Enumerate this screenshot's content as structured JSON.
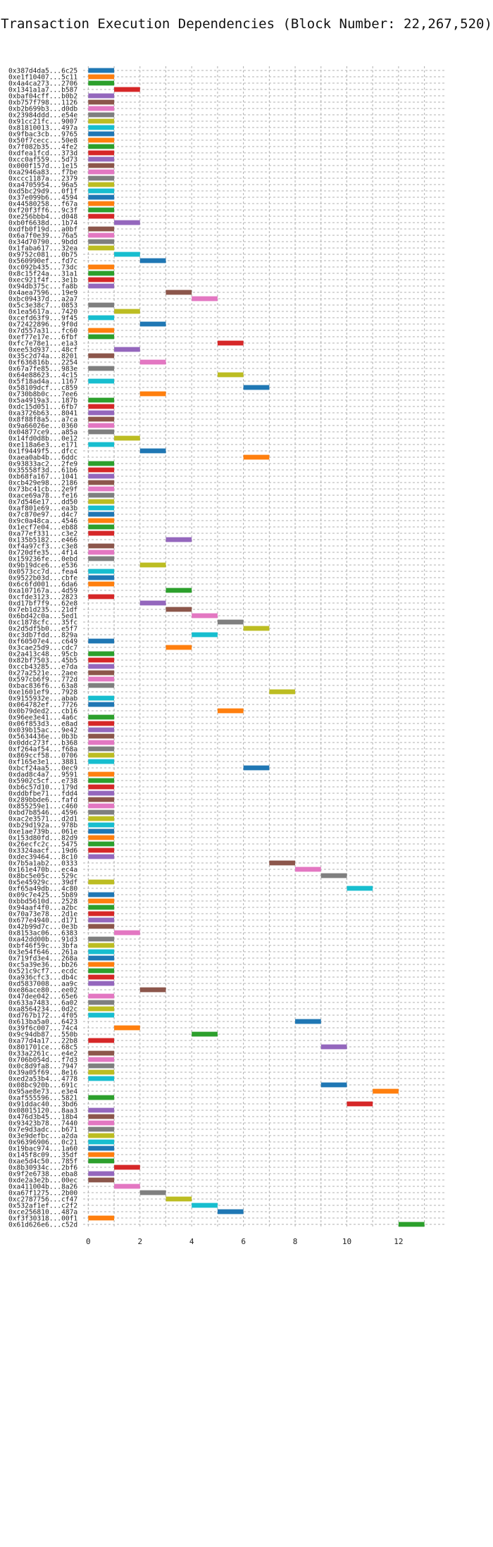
{
  "chart_data": {
    "type": "bar",
    "orientation": "horizontal-gantt",
    "title": "Transaction Execution Dependencies (Block Number: 22,267,520)",
    "xlabel": "",
    "ylabel": "",
    "xlim": [
      -0.2,
      13.8
    ],
    "xticks": [
      0,
      2,
      4,
      6,
      8,
      10,
      12
    ],
    "grid": true,
    "palette": [
      "#1f77b4",
      "#ff7f0e",
      "#2ca02c",
      "#d62728",
      "#9467bd",
      "#8c564b",
      "#e377c2",
      "#7f7f7f",
      "#bcbd22",
      "#17becf"
    ],
    "bar_width": 1,
    "transactions": [
      {
        "label": "0x387d4da5...6c25",
        "start": 0
      },
      {
        "label": "0xe1f10407...5c11",
        "start": 0
      },
      {
        "label": "0x4a4ca273...2706",
        "start": 0
      },
      {
        "label": "0x1341a1a7...b587",
        "start": 1
      },
      {
        "label": "0xbaf04cff...b0b2",
        "start": 0
      },
      {
        "label": "0xb757f798...1126",
        "start": 0
      },
      {
        "label": "0xb2b699b3...d0db",
        "start": 0
      },
      {
        "label": "0x23984ddd...e54e",
        "start": 0
      },
      {
        "label": "0x91cc21fc...9007",
        "start": 0
      },
      {
        "label": "0x81810013...497a",
        "start": 0
      },
      {
        "label": "0x9fbac3cb...9765",
        "start": 0
      },
      {
        "label": "0x50f7cecc...50e8",
        "start": 0
      },
      {
        "label": "0x7f082b35...4fe2",
        "start": 0
      },
      {
        "label": "0xdfea1fcd...373d",
        "start": 0
      },
      {
        "label": "0xcc0af559...5d73",
        "start": 0
      },
      {
        "label": "0x000f157d...1e15",
        "start": 0
      },
      {
        "label": "0xa2946a83...f7be",
        "start": 0
      },
      {
        "label": "0xccc1187a...2379",
        "start": 0
      },
      {
        "label": "0xa4705954...96a5",
        "start": 0
      },
      {
        "label": "0xd5bc29d9...0f1f",
        "start": 0
      },
      {
        "label": "0x37e099b6...4594",
        "start": 0
      },
      {
        "label": "0x44580258...f67a",
        "start": 0
      },
      {
        "label": "0xf20f3ff6...9c3f",
        "start": 0
      },
      {
        "label": "0xe256bbb4...d048",
        "start": 0
      },
      {
        "label": "0xb0f6638d...1b74",
        "start": 1
      },
      {
        "label": "0xdfb0f19d...a0bf",
        "start": 0
      },
      {
        "label": "0x6a7f0e39...76a5",
        "start": 0
      },
      {
        "label": "0x34d70790...9bdd",
        "start": 0
      },
      {
        "label": "0x1faba617...32ea",
        "start": 0
      },
      {
        "label": "0x9752c081...0b75",
        "start": 1
      },
      {
        "label": "0x560990ef...fd7c",
        "start": 2
      },
      {
        "label": "0xc092b435...73dc",
        "start": 0
      },
      {
        "label": "0x8c15f24a...31a1",
        "start": 0
      },
      {
        "label": "0xec921f4f...3e1b",
        "start": 0
      },
      {
        "label": "0x94db375c...fa8b",
        "start": 0
      },
      {
        "label": "0x4aea7596...19e9",
        "start": 3
      },
      {
        "label": "0xbc09437d...a2a7",
        "start": 4
      },
      {
        "label": "0x5c3e38c7...0853",
        "start": 0
      },
      {
        "label": "0x1ea5617a...7420",
        "start": 1
      },
      {
        "label": "0xcefd63f9...9f45",
        "start": 0
      },
      {
        "label": "0x72422896...9f0d",
        "start": 2
      },
      {
        "label": "0x7d557a31...fc60",
        "start": 0
      },
      {
        "label": "0xef77e17e...6fbf",
        "start": 0
      },
      {
        "label": "0xfc7e78e1...e1a3",
        "start": 5
      },
      {
        "label": "0xee53d937...48cf",
        "start": 1
      },
      {
        "label": "0x35c2d74a...8201",
        "start": 0
      },
      {
        "label": "0xf636816b...2254",
        "start": 2
      },
      {
        "label": "0x67a7fe85...983e",
        "start": 0
      },
      {
        "label": "0x64e88623...4c15",
        "start": 5
      },
      {
        "label": "0x5f18ad4a...1167",
        "start": 0
      },
      {
        "label": "0x58109dcf...c859",
        "start": 6
      },
      {
        "label": "0x730b8b0c...7ee6",
        "start": 2
      },
      {
        "label": "0x5a4919a3...187b",
        "start": 0
      },
      {
        "label": "0xdc15d051...6fb7",
        "start": 0
      },
      {
        "label": "0xa3726b63...8041",
        "start": 0
      },
      {
        "label": "0x8f88f8a5...a7ca",
        "start": 0
      },
      {
        "label": "0x9a66026e...0360",
        "start": 0
      },
      {
        "label": "0x04877ce9...a85a",
        "start": 0
      },
      {
        "label": "0x14fd0d8b...0e12",
        "start": 1
      },
      {
        "label": "0xe118a6e3...e171",
        "start": 0
      },
      {
        "label": "0x1f9449f5...dfcc",
        "start": 2
      },
      {
        "label": "0xaea0ab4b...6ddc",
        "start": 6
      },
      {
        "label": "0x93833ac2...2fe9",
        "start": 0
      },
      {
        "label": "0x35558f3d...61b6",
        "start": 0
      },
      {
        "label": "0xb68fa167...1041",
        "start": 0
      },
      {
        "label": "0xcb429e98...2186",
        "start": 0
      },
      {
        "label": "0x73bc41cb...2e9f",
        "start": 0
      },
      {
        "label": "0xace69a78...fe16",
        "start": 0
      },
      {
        "label": "0x7d546e17...dd50",
        "start": 0
      },
      {
        "label": "0xaf801e69...ea3b",
        "start": 0
      },
      {
        "label": "0x7c870e97...d4c7",
        "start": 0
      },
      {
        "label": "0x9c0a48ca...4546",
        "start": 0
      },
      {
        "label": "0x1ecf7e04...eb88",
        "start": 0
      },
      {
        "label": "0xa77ef331...c3e2",
        "start": 0
      },
      {
        "label": "0x135b5182...e466",
        "start": 3
      },
      {
        "label": "0xf4a97cf3...c3e8",
        "start": 0
      },
      {
        "label": "0x720dfe35...4f14",
        "start": 0
      },
      {
        "label": "0x159236fe...0ebd",
        "start": 0
      },
      {
        "label": "0x9b19dce6...e536",
        "start": 2
      },
      {
        "label": "0x0573cc7d...fea4",
        "start": 0
      },
      {
        "label": "0x9522b03d...cbfe",
        "start": 0
      },
      {
        "label": "0x6c6fd001...6da6",
        "start": 0
      },
      {
        "label": "0xa107167a...4d59",
        "start": 3
      },
      {
        "label": "0xcfde3123...2823",
        "start": 0
      },
      {
        "label": "0xd17bf7f9...62e8",
        "start": 2
      },
      {
        "label": "0x7eb1d235...21df",
        "start": 3
      },
      {
        "label": "0x6bd42c0a...5ed1",
        "start": 4
      },
      {
        "label": "0xc1878cfc...35fc",
        "start": 5
      },
      {
        "label": "0x2d5df5b0...e5f7",
        "start": 6
      },
      {
        "label": "0xc3db7fdd...829a",
        "start": 4
      },
      {
        "label": "0xf60507e4...c649",
        "start": 0
      },
      {
        "label": "0x3cae25d9...cdc7",
        "start": 3
      },
      {
        "label": "0x2a413c48...95cb",
        "start": 0
      },
      {
        "label": "0x82bf7503...45b5",
        "start": 0
      },
      {
        "label": "0xccb43285...e7da",
        "start": 0
      },
      {
        "label": "0x27a2521e...2aee",
        "start": 0
      },
      {
        "label": "0x597cb6f9...772d",
        "start": 0
      },
      {
        "label": "0xbac836f6...63a8",
        "start": 0
      },
      {
        "label": "0xe1601ef9...7928",
        "start": 7
      },
      {
        "label": "0x9155932e...abab",
        "start": 0
      },
      {
        "label": "0x064782ef...7726",
        "start": 0
      },
      {
        "label": "0x0b79ded2...cb16",
        "start": 5
      },
      {
        "label": "0x96ee3e41...4a6c",
        "start": 0
      },
      {
        "label": "0x06f853d3...e8ad",
        "start": 0
      },
      {
        "label": "0x039b15ac...9e42",
        "start": 0
      },
      {
        "label": "0x5634436e...0b3b",
        "start": 0
      },
      {
        "label": "0x0ddc273f...b368",
        "start": 0
      },
      {
        "label": "0xf264af54...f68a",
        "start": 0
      },
      {
        "label": "0x869ccf58...0706",
        "start": 0
      },
      {
        "label": "0xf165e3e1...3881",
        "start": 0
      },
      {
        "label": "0xbcf24aa5...0ec9",
        "start": 6
      },
      {
        "label": "0xdad8c4a7...9591",
        "start": 0
      },
      {
        "label": "0x5902c5cf...e738",
        "start": 0
      },
      {
        "label": "0xb6c57d10...179d",
        "start": 0
      },
      {
        "label": "0xddbfbe71...fdd4",
        "start": 0
      },
      {
        "label": "0x289bbde6...fafd",
        "start": 0
      },
      {
        "label": "0x855259e1...c460",
        "start": 0
      },
      {
        "label": "0xbd7b8546...4596",
        "start": 0
      },
      {
        "label": "0xac2e3571...d2d1",
        "start": 0
      },
      {
        "label": "0xb29d192a...978b",
        "start": 0
      },
      {
        "label": "0xe1ae739b...061e",
        "start": 0
      },
      {
        "label": "0x153d80fd...82d9",
        "start": 0
      },
      {
        "label": "0x26ecfc2c...5475",
        "start": 0
      },
      {
        "label": "0x3324aacf...19d6",
        "start": 0
      },
      {
        "label": "0xdec39464...8c10",
        "start": 0
      },
      {
        "label": "0x7b5a1ab2...0333",
        "start": 7
      },
      {
        "label": "0x161e470b...ec4a",
        "start": 8
      },
      {
        "label": "0x8bc5e05c...529c",
        "start": 9
      },
      {
        "label": "0x5e45929c...39df",
        "start": 0
      },
      {
        "label": "0xf65a49db...4c80",
        "start": 10
      },
      {
        "label": "0x09c7e425...5b89",
        "start": 0
      },
      {
        "label": "0xbbd5610d...2528",
        "start": 0
      },
      {
        "label": "0x94aaf4f0...a2bc",
        "start": 0
      },
      {
        "label": "0x70a73e78...2d1e",
        "start": 0
      },
      {
        "label": "0x677e4940...d171",
        "start": 0
      },
      {
        "label": "0x42b99d7c...0e3b",
        "start": 0
      },
      {
        "label": "0x8153ac06...6383",
        "start": 1
      },
      {
        "label": "0xa42dd00b...91d3",
        "start": 0
      },
      {
        "label": "0xbf46f59c...3bfa",
        "start": 0
      },
      {
        "label": "0x3e54f646...261a",
        "start": 0
      },
      {
        "label": "0x719fd3e4...268a",
        "start": 0
      },
      {
        "label": "0xc5a39e36...bb26",
        "start": 0
      },
      {
        "label": "0x521c9cf7...ecdc",
        "start": 0
      },
      {
        "label": "0xa936cfc3...db4c",
        "start": 0
      },
      {
        "label": "0xd5837008...aa9c",
        "start": 0
      },
      {
        "label": "0xe86ace80...ee02",
        "start": 2
      },
      {
        "label": "0x47dee042...65e6",
        "start": 0
      },
      {
        "label": "0x633a7483...6a02",
        "start": 0
      },
      {
        "label": "0xa8564234...0d2c",
        "start": 0
      },
      {
        "label": "0xd767b172...4f05",
        "start": 0
      },
      {
        "label": "0x613ba5a0...6423",
        "start": 8
      },
      {
        "label": "0x39f6c007...74c4",
        "start": 1
      },
      {
        "label": "0x9c94db87...550b",
        "start": 4
      },
      {
        "label": "0xa77d4a17...22b8",
        "start": 0
      },
      {
        "label": "0x801701ce...68c5",
        "start": 9
      },
      {
        "label": "0x33a2261c...e4e2",
        "start": 0
      },
      {
        "label": "0x706b054d...f7d3",
        "start": 0
      },
      {
        "label": "0x0c8d9fa8...7947",
        "start": 0
      },
      {
        "label": "0x39a05f69...8e16",
        "start": 0
      },
      {
        "label": "0xed2a53b4...4778",
        "start": 0
      },
      {
        "label": "0x08bc920b...691c",
        "start": 9
      },
      {
        "label": "0x95ae8e73...e3e4",
        "start": 11
      },
      {
        "label": "0xaf555596...5821",
        "start": 0
      },
      {
        "label": "0x91ddac40...3bd6",
        "start": 10
      },
      {
        "label": "0x08015120...8aa3",
        "start": 0
      },
      {
        "label": "0x476d3b45...18b4",
        "start": 0
      },
      {
        "label": "0x93423b78...7440",
        "start": 0
      },
      {
        "label": "0x7e9d3adc...b671",
        "start": 0
      },
      {
        "label": "0x3e9defbc...a2da",
        "start": 0
      },
      {
        "label": "0x96396906...0c21",
        "start": 0
      },
      {
        "label": "0x19bac974...1a60",
        "start": 0
      },
      {
        "label": "0x145f8c09...35df",
        "start": 0
      },
      {
        "label": "0xae5d4c50...785f",
        "start": 0
      },
      {
        "label": "0x8b30934c...2bf6",
        "start": 1
      },
      {
        "label": "0x9f2e6738...eba8",
        "start": 0
      },
      {
        "label": "0xde2a3e2b...00ec",
        "start": 0
      },
      {
        "label": "0xa411004b...8a26",
        "start": 1
      },
      {
        "label": "0xa67f1275...2b00",
        "start": 2
      },
      {
        "label": "0xc2787756...cf47",
        "start": 3
      },
      {
        "label": "0x532af1ef...c2f2",
        "start": 4
      },
      {
        "label": "0xce256810...487a",
        "start": 5
      },
      {
        "label": "0xf3f30318...00f1",
        "start": 0
      },
      {
        "label": "0x61d626e6...c52d",
        "start": 12
      }
    ]
  }
}
